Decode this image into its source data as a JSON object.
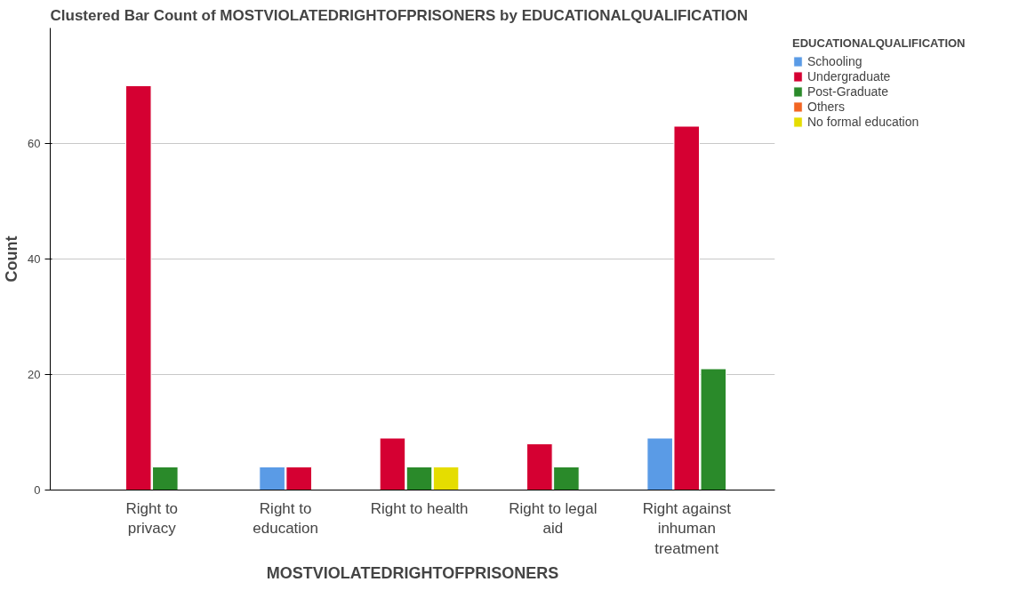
{
  "chart_data": {
    "type": "bar",
    "title": "Clustered Bar Count of MOSTVIOLATEDRIGHTOFPRISONERS by EDUCATIONALQUALIFICATION",
    "xlabel": "MOSTVIOLATEDRIGHTOFPRISONERS",
    "ylabel": "Count",
    "legend_title": "EDUCATIONALQUALIFICATION",
    "categories": [
      "Right to privacy",
      "Right to education",
      "Right to health",
      "Right to legal aid",
      "Right against inhuman treatment"
    ],
    "series": [
      {
        "name": "Schooling",
        "color": "#5a9be6",
        "values": [
          null,
          4,
          null,
          null,
          9
        ]
      },
      {
        "name": "Undergraduate",
        "color": "#d50032",
        "values": [
          70,
          4,
          9,
          8,
          63
        ]
      },
      {
        "name": "Post-Graduate",
        "color": "#2a8a2a",
        "values": [
          4,
          null,
          4,
          4,
          21
        ]
      },
      {
        "name": "Others",
        "color": "#f26522",
        "values": [
          null,
          null,
          null,
          null,
          null
        ]
      },
      {
        "name": "No formal education",
        "color": "#e5dd00",
        "values": [
          null,
          null,
          4,
          null,
          null
        ]
      }
    ],
    "ylim": [
      0,
      80
    ],
    "yticks": [
      0,
      20,
      40,
      60
    ],
    "grid": "y",
    "legend": "top right"
  }
}
